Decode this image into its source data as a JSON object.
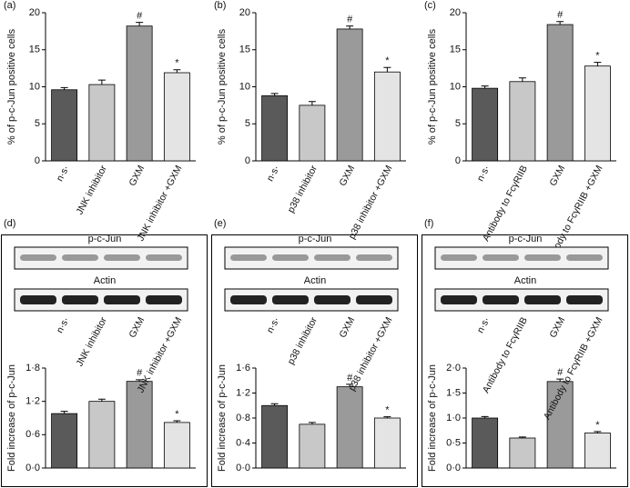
{
  "chart_data": [
    {
      "type": "bar",
      "label": "(a)",
      "ylabel": "% of p-c-Jun positive cells",
      "categories": [
        "n·s·",
        "JNK inhibitor",
        "GXM",
        "JNK inhibitor +GXM"
      ],
      "values": [
        9.6,
        10.3,
        18.2,
        11.9
      ],
      "errors": [
        0.3,
        0.6,
        0.5,
        0.4
      ],
      "markers": [
        null,
        null,
        "#",
        "*"
      ],
      "colors": [
        "#5a5a5a",
        "#c8c8c8",
        "#9a9a9a",
        "#e4e4e4"
      ],
      "ylim": [
        0,
        20
      ],
      "yticks": [
        0,
        5,
        10,
        15,
        20
      ]
    },
    {
      "type": "bar",
      "label": "(b)",
      "ylabel": "% of p-c-Jun positive cells",
      "categories": [
        "n·s·",
        "p38 inhibitor",
        "GXM",
        "p38 inhibitor +GXM"
      ],
      "values": [
        8.8,
        7.5,
        17.8,
        12.0
      ],
      "errors": [
        0.3,
        0.5,
        0.4,
        0.6
      ],
      "markers": [
        null,
        null,
        "#",
        "*"
      ],
      "colors": [
        "#5a5a5a",
        "#c8c8c8",
        "#9a9a9a",
        "#e4e4e4"
      ],
      "ylim": [
        0,
        20
      ],
      "yticks": [
        0,
        5,
        10,
        15,
        20
      ]
    },
    {
      "type": "bar",
      "label": "(c)",
      "ylabel": "% of p-c-Jun positive cells",
      "categories": [
        "n·s·",
        "Antibody to FcγRIIB",
        "GXM",
        "Antibody to FcγRIIB +GXM"
      ],
      "values": [
        9.8,
        10.7,
        18.4,
        12.8
      ],
      "errors": [
        0.3,
        0.5,
        0.4,
        0.5
      ],
      "markers": [
        null,
        null,
        "#",
        "*"
      ],
      "colors": [
        "#5a5a5a",
        "#c8c8c8",
        "#9a9a9a",
        "#e4e4e4"
      ],
      "ylim": [
        0,
        20
      ],
      "yticks": [
        0,
        5,
        10,
        15,
        20
      ]
    },
    {
      "type": "bar",
      "label": "(d)",
      "blot_labels": [
        "p-c-Jun",
        "Actin"
      ],
      "ylabel": "Fold increase of p-c-Jun",
      "categories": [
        "n·s·",
        "JNK inhibitor",
        "GXM",
        "JNK inhibitor +GXM"
      ],
      "values": [
        0.98,
        1.2,
        1.56,
        0.82
      ],
      "errors": [
        0.04,
        0.04,
        0.03,
        0.03
      ],
      "markers": [
        null,
        null,
        "#",
        "*"
      ],
      "colors": [
        "#5a5a5a",
        "#c8c8c8",
        "#9a9a9a",
        "#e4e4e4"
      ],
      "ylim": [
        0,
        1.8
      ],
      "yticks": [
        {
          "value": 0,
          "label": "0·0"
        },
        {
          "value": 0.6,
          "label": "0·6"
        },
        {
          "value": 1.2,
          "label": "1·2"
        },
        {
          "value": 1.8,
          "label": "1·8"
        }
      ]
    },
    {
      "type": "bar",
      "label": "(e)",
      "blot_labels": [
        "p-c-Jun",
        "Actin"
      ],
      "ylabel": "Fold increase of p-c-Jun",
      "categories": [
        "n·s·",
        "p38 inhibitor",
        "GXM",
        "p38 inhibitor +GXM"
      ],
      "values": [
        1.0,
        0.7,
        1.3,
        0.8
      ],
      "errors": [
        0.03,
        0.03,
        0.04,
        0.02
      ],
      "markers": [
        null,
        null,
        "#",
        "*"
      ],
      "colors": [
        "#5a5a5a",
        "#c8c8c8",
        "#9a9a9a",
        "#e4e4e4"
      ],
      "ylim": [
        0,
        1.6
      ],
      "yticks": [
        {
          "value": 0,
          "label": "0·0"
        },
        {
          "value": 0.4,
          "label": "0·4"
        },
        {
          "value": 0.8,
          "label": "0·8"
        },
        {
          "value": 1.2,
          "label": "1·2"
        },
        {
          "value": 1.6,
          "label": "1·6"
        }
      ]
    },
    {
      "type": "bar",
      "label": "(f)",
      "blot_labels": [
        "p-c-Jun",
        "Actin"
      ],
      "ylabel": "Fold increase of p-c-Jun",
      "categories": [
        "n·s·",
        "Antibody to FcγRIIB",
        "GXM",
        "Antibody to FcγRIIB +GXM"
      ],
      "values": [
        1.0,
        0.6,
        1.73,
        0.7
      ],
      "errors": [
        0.03,
        0.02,
        0.05,
        0.03
      ],
      "markers": [
        null,
        null,
        "#",
        "*"
      ],
      "colors": [
        "#5a5a5a",
        "#c8c8c8",
        "#9a9a9a",
        "#e4e4e4"
      ],
      "ylim": [
        0,
        2.0
      ],
      "yticks": [
        {
          "value": 0,
          "label": "0·0"
        },
        {
          "value": 0.5,
          "label": "0·5"
        },
        {
          "value": 1.0,
          "label": "1·0"
        },
        {
          "value": 1.5,
          "label": "1·5"
        },
        {
          "value": 2.0,
          "label": "2·0"
        }
      ]
    }
  ]
}
